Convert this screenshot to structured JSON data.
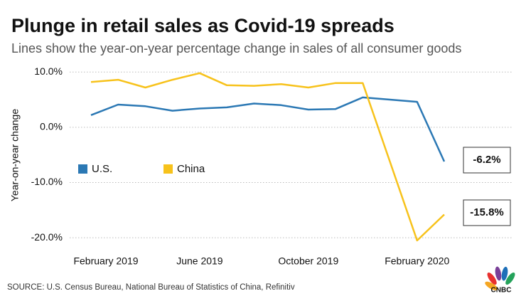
{
  "chart_data": {
    "type": "line",
    "title": "Plunge in retail sales as Covid-19 spreads",
    "subtitle": "Lines show the year-on-year percentage change in sales of all consumer goods",
    "y_label": "Year-on-year change",
    "source": "SOURCE: U.S. Census Bureau, National Bureau of Statistics of China, Refinitiv",
    "logo": "CNBC",
    "categories": [
      "February 2019",
      null,
      null,
      null,
      "June 2019",
      null,
      null,
      null,
      "October 2019",
      null,
      null,
      null,
      "February 2020",
      null
    ],
    "series": [
      {
        "name": "U.S.",
        "color": "#2b78b4",
        "values": [
          2.2,
          4.1,
          3.8,
          3.0,
          3.4,
          3.6,
          4.3,
          4.0,
          3.2,
          3.3,
          5.4,
          5.0,
          4.6,
          -6.2
        ],
        "value_labels": [
          null,
          null,
          null,
          null,
          null,
          null,
          null,
          null,
          null,
          null,
          null,
          null,
          null,
          "-6.2%"
        ]
      },
      {
        "name": "China",
        "color": "#f7c21b",
        "values": [
          8.2,
          8.6,
          7.2,
          8.6,
          9.8,
          7.6,
          7.5,
          7.8,
          7.2,
          8.0,
          8.0,
          -6.2,
          -20.5,
          -15.8
        ],
        "value_labels": [
          null,
          null,
          null,
          null,
          null,
          null,
          null,
          null,
          null,
          null,
          null,
          null,
          null,
          "-15.8%"
        ]
      }
    ],
    "ylim": [
      -21.4,
      10.8
    ],
    "yticks": [
      {
        "value": -20,
        "label": "-20.0%"
      },
      {
        "value": -10,
        "label": "-10.0%"
      },
      {
        "value": 0,
        "label": "0.0%"
      },
      {
        "value": 10,
        "label": "10.0%"
      }
    ],
    "grid": true
  }
}
